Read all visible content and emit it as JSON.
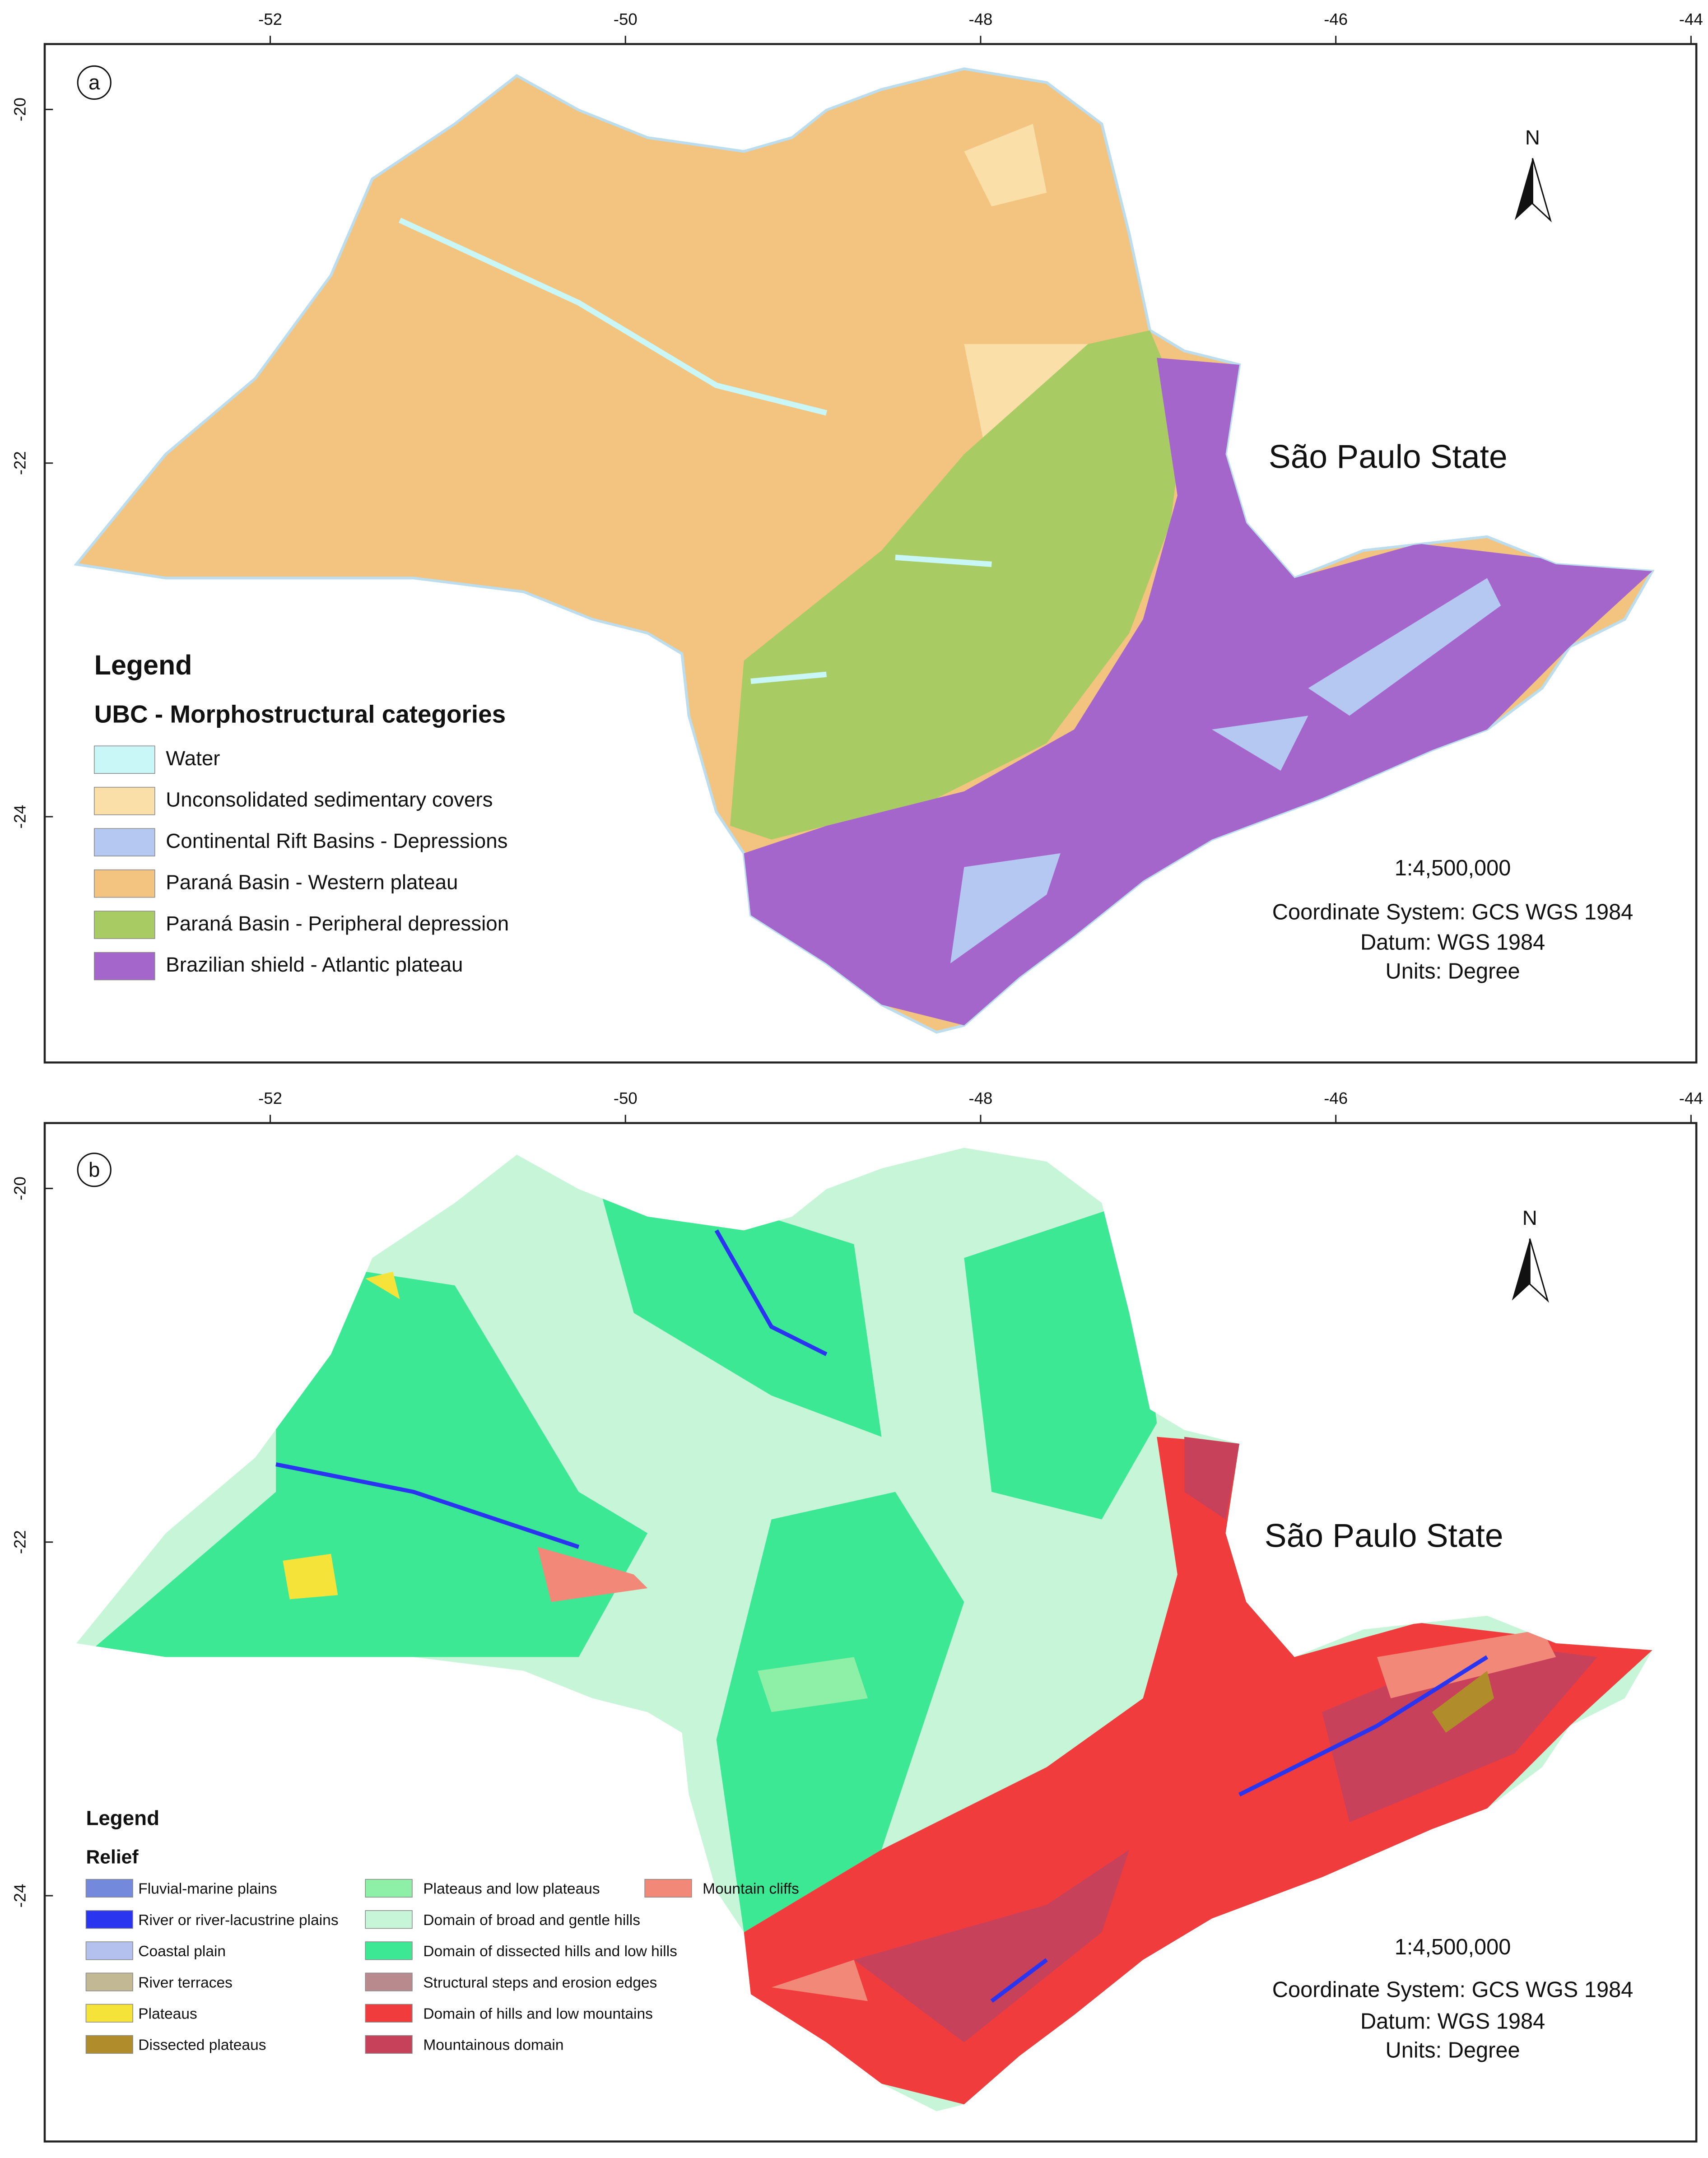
{
  "panels": [
    {
      "label": "a",
      "lon_ticks": [
        -52,
        -50,
        -48,
        -46,
        -44
      ],
      "lat_ticks": [
        -20,
        -22,
        -24
      ],
      "xlim": [
        -53.27,
        -43.97
      ],
      "ylim": [
        -19.63,
        -25.39
      ],
      "north": "N",
      "title": "São Paulo State",
      "legend": {
        "title": "Legend",
        "subtitle": "UBC - Morphostructural categories",
        "items": [
          {
            "name": "Water",
            "color": "#c9f6f6"
          },
          {
            "name": "Unconsolidated sedimentary covers",
            "color": "#fbdfa9"
          },
          {
            "name": "Continental Rift Basins - Depressions",
            "color": "#b5c8f2"
          },
          {
            "name": "Paraná Basin - Western plateau",
            "color": "#f2c47f"
          },
          {
            "name": "Paraná Basin - Peripheral depression",
            "color": "#a8cb64"
          },
          {
            "name": "Brazilian shield - Atlantic plateau",
            "color": "#a566cc"
          }
        ]
      },
      "scale": "1:4,500,000",
      "coordinate_system": "Coordinate System: GCS WGS 1984",
      "datum": "Datum: WGS 1984",
      "units": "Units: Degree"
    },
    {
      "label": "b",
      "lon_ticks": [
        -52,
        -50,
        -48,
        -46,
        -44
      ],
      "lat_ticks": [
        -20,
        -22,
        -24
      ],
      "xlim": [
        -53.27,
        -43.97
      ],
      "ylim": [
        -19.63,
        -25.39
      ],
      "north": "N",
      "title": "São Paulo State",
      "legend": {
        "title": "Legend",
        "subtitle": "Relief",
        "items": [
          {
            "name": "Fluvial-marine plains",
            "color": "#7389db"
          },
          {
            "name": "River or river-lacustrine plains",
            "color": "#2a35f0"
          },
          {
            "name": "Coastal plain",
            "color": "#b4c0ee"
          },
          {
            "name": "River terraces",
            "color": "#c2b994"
          },
          {
            "name": "Plateaus",
            "color": "#f5e33a"
          },
          {
            "name": "Dissected plateaus",
            "color": "#b08d2a"
          },
          {
            "name": "Plateaus and low plateaus",
            "color": "#8ef0a6"
          },
          {
            "name": "Domain of broad and gentle hills",
            "color": "#c7f5d8"
          },
          {
            "name": "Domain of dissected hills and low hills",
            "color": "#3de895"
          },
          {
            "name": "Structural steps and erosion edges",
            "color": "#b88a8e"
          },
          {
            "name": "Domain of hills and low mountains",
            "color": "#f03c3c"
          },
          {
            "name": "Mountainous domain",
            "color": "#c8415a"
          },
          {
            "name": "Mountain cliffs",
            "color": "#f28878"
          }
        ]
      },
      "scale": "1:4,500,000",
      "coordinate_system": "Coordinate System: GCS WGS 1984",
      "datum": "Datum: WGS 1984",
      "units": "Units: Degree"
    }
  ]
}
